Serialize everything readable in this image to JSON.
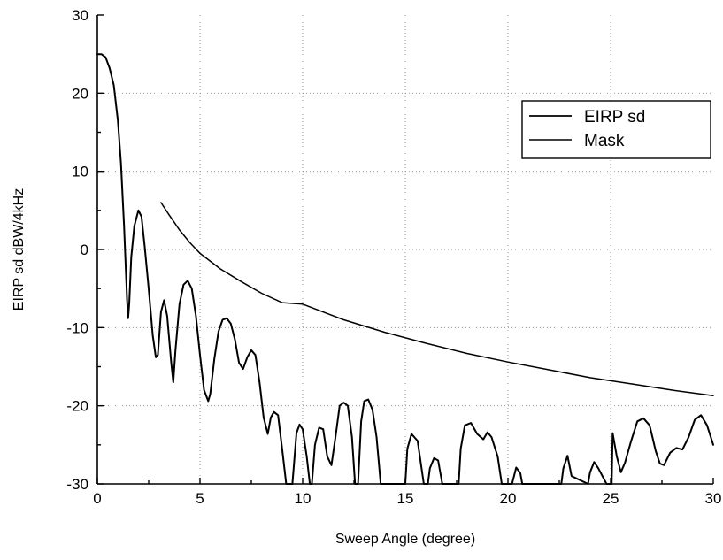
{
  "chart_data": {
    "type": "line",
    "title": "",
    "xlabel": "Sweep Angle (degree)",
    "ylabel": "EIRP sd dBW/4kHz",
    "xlim": [
      0,
      30
    ],
    "ylim": [
      -30,
      30
    ],
    "xticks": [
      "0",
      "5",
      "10",
      "15",
      "20",
      "25",
      "30"
    ],
    "yticks": [
      "30",
      "20",
      "10",
      "0",
      "-10",
      "-20",
      "-30"
    ],
    "grid": true,
    "legend_position": "top-right",
    "series": [
      {
        "name": "EIRP sd",
        "color": "#000000",
        "x": [
          0.0,
          0.2,
          0.4,
          0.6,
          0.8,
          1.0,
          1.15,
          1.3,
          1.45,
          1.5,
          1.55,
          1.65,
          1.8,
          2.0,
          2.15,
          2.3,
          2.5,
          2.7,
          2.85,
          2.95,
          3.1,
          3.25,
          3.4,
          3.6,
          3.7,
          3.8,
          4.0,
          4.2,
          4.4,
          4.6,
          4.8,
          5.0,
          5.2,
          5.4,
          5.5,
          5.7,
          5.9,
          6.1,
          6.3,
          6.5,
          6.7,
          6.9,
          7.1,
          7.3,
          7.5,
          7.7,
          7.9,
          8.1,
          8.3,
          8.45,
          8.6,
          8.8,
          9.0,
          9.2,
          9.3,
          9.5,
          9.7,
          9.85,
          10.0,
          10.2,
          10.35,
          10.45,
          10.6,
          10.8,
          11.0,
          11.2,
          11.4,
          11.6,
          11.8,
          12.0,
          12.2,
          12.4,
          12.55,
          12.7,
          12.85,
          13.0,
          13.2,
          13.4,
          13.6,
          13.8,
          13.95,
          14.0,
          15.0,
          15.1,
          15.3,
          15.6,
          15.9,
          16.05,
          16.1,
          16.2,
          16.4,
          16.6,
          16.8,
          16.9,
          17.6,
          17.7,
          17.9,
          18.2,
          18.5,
          18.8,
          19.0,
          19.2,
          19.5,
          19.7,
          20.2,
          20.4,
          20.6,
          20.7,
          22.6,
          22.7,
          22.9,
          23.1,
          23.9,
          24.0,
          24.2,
          24.4,
          24.8,
          25.05,
          25.1,
          25.3,
          25.5,
          25.7,
          26.0,
          26.3,
          26.6,
          26.9,
          27.2,
          27.4,
          27.6,
          27.9,
          28.2,
          28.5,
          28.8,
          29.1,
          29.4,
          29.7,
          30.0
        ],
        "y": [
          25.0,
          25.0,
          24.6,
          23.2,
          21.0,
          16.5,
          11.0,
          3.0,
          -6.5,
          -8.8,
          -7.0,
          -1.0,
          3.0,
          5.0,
          4.2,
          0.5,
          -5.0,
          -11.0,
          -13.8,
          -13.5,
          -8.0,
          -6.5,
          -8.5,
          -14.5,
          -17.0,
          -13.0,
          -7.0,
          -4.5,
          -4.0,
          -5.0,
          -8.5,
          -13.5,
          -18.0,
          -19.4,
          -18.5,
          -14.0,
          -10.5,
          -9.0,
          -8.8,
          -9.5,
          -11.5,
          -14.5,
          -15.3,
          -13.8,
          -12.9,
          -13.5,
          -17.0,
          -21.5,
          -23.6,
          -21.5,
          -20.8,
          -21.2,
          -25.5,
          -30.0,
          -30.0,
          -30.0,
          -23.5,
          -22.4,
          -23.0,
          -26.5,
          -30.0,
          -30.0,
          -25.0,
          -22.8,
          -23.0,
          -26.5,
          -27.6,
          -24.0,
          -20.0,
          -19.6,
          -20.0,
          -24.0,
          -30.0,
          -30.0,
          -22.0,
          -19.4,
          -19.2,
          -20.5,
          -24.0,
          -30.0,
          -30.0,
          -30.0,
          -30.0,
          -25.5,
          -23.6,
          -24.5,
          -30.0,
          -30.0,
          -30.0,
          -28.0,
          -26.7,
          -27.0,
          -30.0,
          -30.0,
          -30.0,
          -25.5,
          -22.5,
          -22.2,
          -23.6,
          -24.3,
          -23.4,
          -24.0,
          -26.5,
          -30.0,
          -30.0,
          -27.9,
          -28.6,
          -30.0,
          -30.0,
          -28.0,
          -26.4,
          -29.0,
          -30.0,
          -28.5,
          -27.2,
          -28.0,
          -30.0,
          -30.0,
          -23.5,
          -26.5,
          -28.5,
          -27.3,
          -24.5,
          -22.0,
          -21.6,
          -22.5,
          -25.8,
          -27.4,
          -27.6,
          -26.0,
          -25.4,
          -25.6,
          -24.0,
          -21.8,
          -21.2,
          -22.5,
          -25.0
        ]
      },
      {
        "name": "Mask",
        "color": "#000000",
        "x": [
          3.1,
          3.5,
          4.0,
          4.5,
          5.0,
          6.0,
          7.0,
          8.0,
          9.0,
          10.0,
          12.0,
          14.0,
          16.0,
          18.0,
          20.0,
          22.0,
          24.0,
          26.0,
          28.0,
          30.0
        ],
        "y": [
          6.0,
          4.4,
          2.5,
          0.9,
          -0.5,
          -2.5,
          -4.1,
          -5.6,
          -6.8,
          -7.0,
          -9.0,
          -10.6,
          -12.0,
          -13.3,
          -14.4,
          -15.4,
          -16.4,
          -17.2,
          -18.0,
          -18.7
        ]
      }
    ]
  }
}
